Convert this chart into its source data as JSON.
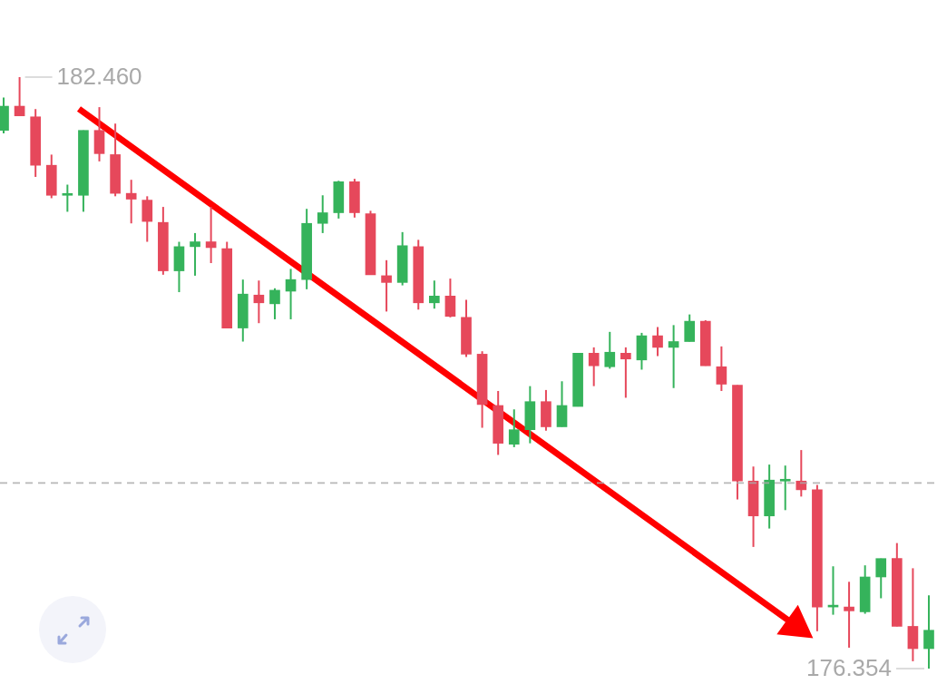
{
  "chart_data": {
    "type": "candlestick",
    "categories": [
      null,
      null,
      null,
      null,
      null,
      null,
      null,
      null,
      null,
      null,
      null,
      null,
      null,
      null,
      null,
      null,
      null,
      null,
      null,
      null,
      null,
      null,
      null,
      null,
      null,
      null,
      null,
      null,
      null,
      null,
      null,
      null,
      null,
      null,
      null,
      null,
      null,
      null,
      null,
      null,
      null,
      null,
      null,
      null,
      null,
      null,
      null,
      null,
      null,
      null,
      null,
      null,
      null,
      null,
      null,
      null,
      null,
      null,
      null
    ],
    "ohlc": [
      [
        181.91,
        182.25,
        181.88,
        182.16
      ],
      [
        182.16,
        182.46,
        182.06,
        182.06
      ],
      [
        182.05,
        182.13,
        181.43,
        181.55
      ],
      [
        181.55,
        181.66,
        181.21,
        181.24
      ],
      [
        181.24,
        181.35,
        181.07,
        181.25
      ],
      [
        181.24,
        181.91,
        181.07,
        181.91
      ],
      [
        181.91,
        182.15,
        181.59,
        181.67
      ],
      [
        181.66,
        181.98,
        181.23,
        181.26
      ],
      [
        181.26,
        181.4,
        180.95,
        181.2
      ],
      [
        181.19,
        181.23,
        180.76,
        180.97
      ],
      [
        180.96,
        181.12,
        180.42,
        180.46
      ],
      [
        180.46,
        180.76,
        180.24,
        180.71
      ],
      [
        180.71,
        180.85,
        180.41,
        180.76
      ],
      [
        180.76,
        181.12,
        180.54,
        180.7
      ],
      [
        180.69,
        180.76,
        179.87,
        179.87
      ],
      [
        179.87,
        180.37,
        179.73,
        180.22
      ],
      [
        180.21,
        180.36,
        179.92,
        180.13
      ],
      [
        180.12,
        180.28,
        179.96,
        180.26
      ],
      [
        180.25,
        180.48,
        179.96,
        180.37
      ],
      [
        180.37,
        181.1,
        180.27,
        180.95
      ],
      [
        180.95,
        181.24,
        180.85,
        181.06
      ],
      [
        181.06,
        181.39,
        181.0,
        181.38
      ],
      [
        181.38,
        181.41,
        181.01,
        181.06
      ],
      [
        181.05,
        181.08,
        180.42,
        180.42
      ],
      [
        180.41,
        180.57,
        180.04,
        180.34
      ],
      [
        180.34,
        180.86,
        180.31,
        180.72
      ],
      [
        180.71,
        180.78,
        180.06,
        180.13
      ],
      [
        180.13,
        180.36,
        180.07,
        180.2
      ],
      [
        180.2,
        180.38,
        179.98,
        179.99
      ],
      [
        179.98,
        180.16,
        179.57,
        179.6
      ],
      [
        179.6,
        179.63,
        178.84,
        179.08
      ],
      [
        179.07,
        179.22,
        178.56,
        178.68
      ],
      [
        178.67,
        179.03,
        178.64,
        178.82
      ],
      [
        178.82,
        179.27,
        178.68,
        179.11
      ],
      [
        179.11,
        179.23,
        178.81,
        178.85
      ],
      [
        178.85,
        179.32,
        178.85,
        179.07
      ],
      [
        179.06,
        179.61,
        179.06,
        179.61
      ],
      [
        179.61,
        179.67,
        179.27,
        179.48
      ],
      [
        179.47,
        179.83,
        179.45,
        179.62
      ],
      [
        179.61,
        179.67,
        179.15,
        179.55
      ],
      [
        179.54,
        179.82,
        179.44,
        179.79
      ],
      [
        179.79,
        179.88,
        179.58,
        179.67
      ],
      [
        179.67,
        179.9,
        179.25,
        179.73
      ],
      [
        179.73,
        180.01,
        179.73,
        179.94
      ],
      [
        179.94,
        179.95,
        179.48,
        179.48
      ],
      [
        179.47,
        179.68,
        179.22,
        179.29
      ],
      [
        179.28,
        179.28,
        178.1,
        178.29
      ],
      [
        178.29,
        178.44,
        177.61,
        177.93
      ],
      [
        177.93,
        178.46,
        177.8,
        178.3
      ],
      [
        178.29,
        178.45,
        177.99,
        178.3
      ],
      [
        178.29,
        178.61,
        178.13,
        178.2
      ],
      [
        178.2,
        178.25,
        176.74,
        176.99
      ],
      [
        176.99,
        177.41,
        176.91,
        177.0
      ],
      [
        176.99,
        177.25,
        176.57,
        176.95
      ],
      [
        176.94,
        177.42,
        176.92,
        177.3
      ],
      [
        177.3,
        177.49,
        177.08,
        177.49
      ],
      [
        177.49,
        177.65,
        176.79,
        176.79
      ],
      [
        176.79,
        177.39,
        176.43,
        176.56
      ],
      [
        176.56,
        177.11,
        176.354,
        176.75
      ]
    ],
    "colors": [
      "#35b35b",
      "#e6485b",
      "#e6485b",
      "#e6485b",
      "#35b35b",
      "#35b35b",
      "#e6485b",
      "#e6485b",
      "#e6485b",
      "#e6485b",
      "#e6485b",
      "#35b35b",
      "#35b35b",
      "#e6485b",
      "#e6485b",
      "#35b35b",
      "#e6485b",
      "#35b35b",
      "#35b35b",
      "#35b35b",
      "#35b35b",
      "#35b35b",
      "#e6485b",
      "#e6485b",
      "#e6485b",
      "#35b35b",
      "#e6485b",
      "#35b35b",
      "#e6485b",
      "#e6485b",
      "#e6485b",
      "#e6485b",
      "#35b35b",
      "#35b35b",
      "#e6485b",
      "#35b35b",
      "#35b35b",
      "#e6485b",
      "#35b35b",
      "#e6485b",
      "#35b35b",
      "#e6485b",
      "#35b35b",
      "#35b35b",
      "#e6485b",
      "#e6485b",
      "#e6485b",
      "#e6485b",
      "#35b35b",
      "#35b35b",
      "#e6485b",
      "#e6485b",
      "#35b35b",
      "#e6485b",
      "#35b35b",
      "#35b35b",
      "#e6485b",
      "#e6485b",
      "#35b35b"
    ],
    "annotations": [
      "182.460",
      "176.354"
    ],
    "ref_lines": [
      {
        "axis": "y",
        "value": 178.27,
        "color": "#aaaaaa",
        "line_style": "dashed"
      }
    ],
    "tick_labels": false
  }
}
